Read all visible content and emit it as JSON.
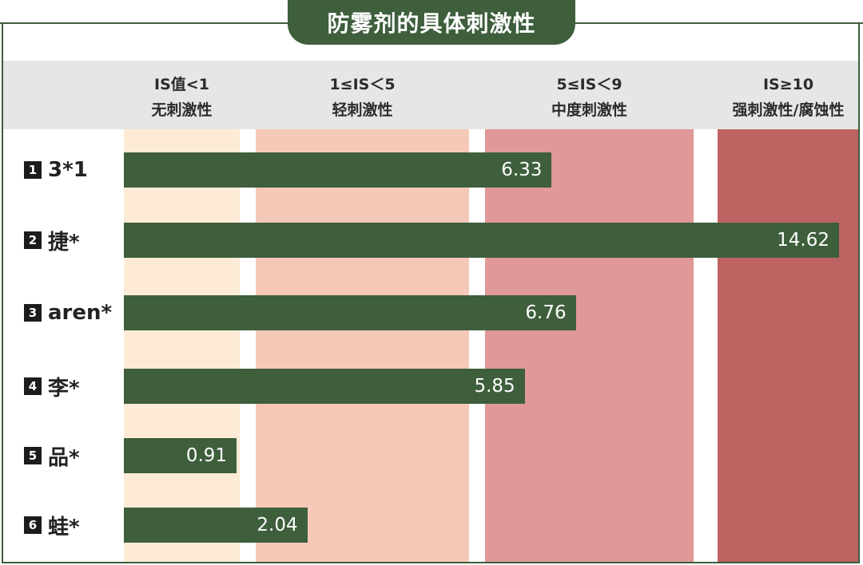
{
  "chart_data": {
    "type": "bar",
    "orientation": "horizontal",
    "title": "防雾剂的具体刺激性",
    "categories": [
      {
        "num": "1",
        "name": "3*1"
      },
      {
        "num": "2",
        "name": "捷*"
      },
      {
        "num": "3",
        "name": "aren*"
      },
      {
        "num": "4",
        "name": "李*"
      },
      {
        "num": "5",
        "name": "品*"
      },
      {
        "num": "6",
        "name": "蛙*"
      }
    ],
    "values": [
      6.33,
      14.62,
      6.76,
      5.85,
      0.91,
      2.04
    ],
    "value_labels": [
      "6.33",
      "14.62",
      "6.76",
      "5.85",
      "0.91",
      "2.04"
    ],
    "xlim": [
      0,
      15
    ],
    "zones": [
      {
        "line1": "IS值<1",
        "line2": "无刺激性",
        "from": 0,
        "to": 1,
        "color": "#fdebd6"
      },
      {
        "line1": "1≤IS＜5",
        "line2": "轻刺激性",
        "from": 1,
        "to": 5,
        "color": "#f5c8b8"
      },
      {
        "line1": "5≤IS＜9",
        "line2": "中度刺激性",
        "from": 5,
        "to": 9,
        "color": "#e09898"
      },
      {
        "line1": "IS≥10",
        "line2": "强刺激性/腐蚀性",
        "from": 10,
        "to": 15,
        "color": "#bd6462"
      }
    ],
    "bar_color": "#3e5e3c"
  }
}
